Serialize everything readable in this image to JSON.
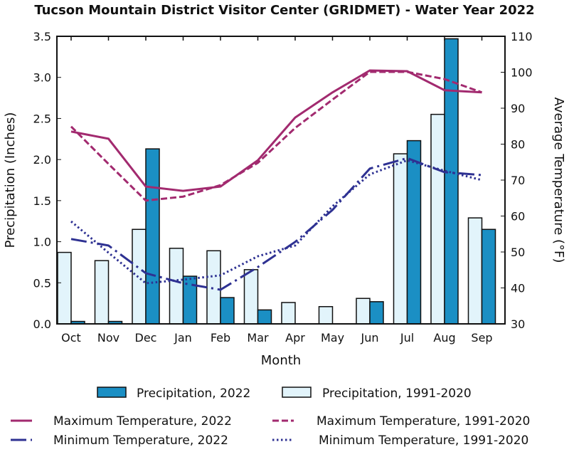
{
  "chart_data": {
    "type": "bar+line",
    "title": "Tucson Mountain District Visitor Center (GRIDMET) - Water Year 2022",
    "xlabel": "Month",
    "ylabel": "Precipitation (Inches)",
    "y2label": "Average Temperature (°F)",
    "categories": [
      "Oct",
      "Nov",
      "Dec",
      "Jan",
      "Feb",
      "Mar",
      "Apr",
      "May",
      "Jun",
      "Jul",
      "Aug",
      "Sep"
    ],
    "ylim": [
      0,
      3.5
    ],
    "yticks": [
      "0.0",
      "0.5",
      "1.0",
      "1.5",
      "2.0",
      "2.5",
      "3.0",
      "3.5"
    ],
    "y2lim": [
      30,
      110
    ],
    "y2ticks": [
      "30",
      "40",
      "50",
      "60",
      "70",
      "80",
      "90",
      "100",
      "110"
    ],
    "grid": false,
    "legend_placement": "bottom",
    "bar_series": [
      {
        "name": "Precipitation, 1991-2020",
        "color": "#e2f4fb",
        "values": [
          0.87,
          0.77,
          1.15,
          0.92,
          0.89,
          0.66,
          0.26,
          0.21,
          0.31,
          2.07,
          2.55,
          1.29
        ]
      },
      {
        "name": "Precipitation, 2022",
        "color": "#1b8fc4",
        "values": [
          0.03,
          0.03,
          2.13,
          0.58,
          0.32,
          0.17,
          0.0,
          0.0,
          0.27,
          2.23,
          3.47,
          1.15
        ]
      }
    ],
    "line_series": [
      {
        "name": "Maximum Temperature, 2022",
        "color": "#a22a6f",
        "style": "solid",
        "values": [
          83.5,
          81.5,
          68.2,
          67.0,
          68.2,
          75.5,
          87.4,
          94.4,
          100.5,
          100.3,
          95.0,
          94.4
        ]
      },
      {
        "name": "Maximum Temperature, 1991-2020",
        "color": "#a22a6f",
        "style": "dashed",
        "values": [
          84.9,
          74.5,
          64.3,
          65.4,
          68.6,
          74.8,
          84.5,
          92.4,
          100.1,
          100.1,
          98.1,
          94.4
        ]
      },
      {
        "name": "Minimum Temperature, 2022",
        "color": "#2e3192",
        "style": "longdash",
        "values": [
          53.6,
          51.8,
          44.1,
          41.3,
          39.5,
          45.8,
          52.8,
          61.7,
          73.2,
          76.1,
          72.2,
          71.4
        ]
      },
      {
        "name": "Minimum Temperature, 1991-2020",
        "color": "#2e3192",
        "style": "dotted",
        "values": [
          58.5,
          49.8,
          41.3,
          42.3,
          43.5,
          48.8,
          51.8,
          62.7,
          71.6,
          75.5,
          72.6,
          70.0
        ]
      }
    ]
  }
}
